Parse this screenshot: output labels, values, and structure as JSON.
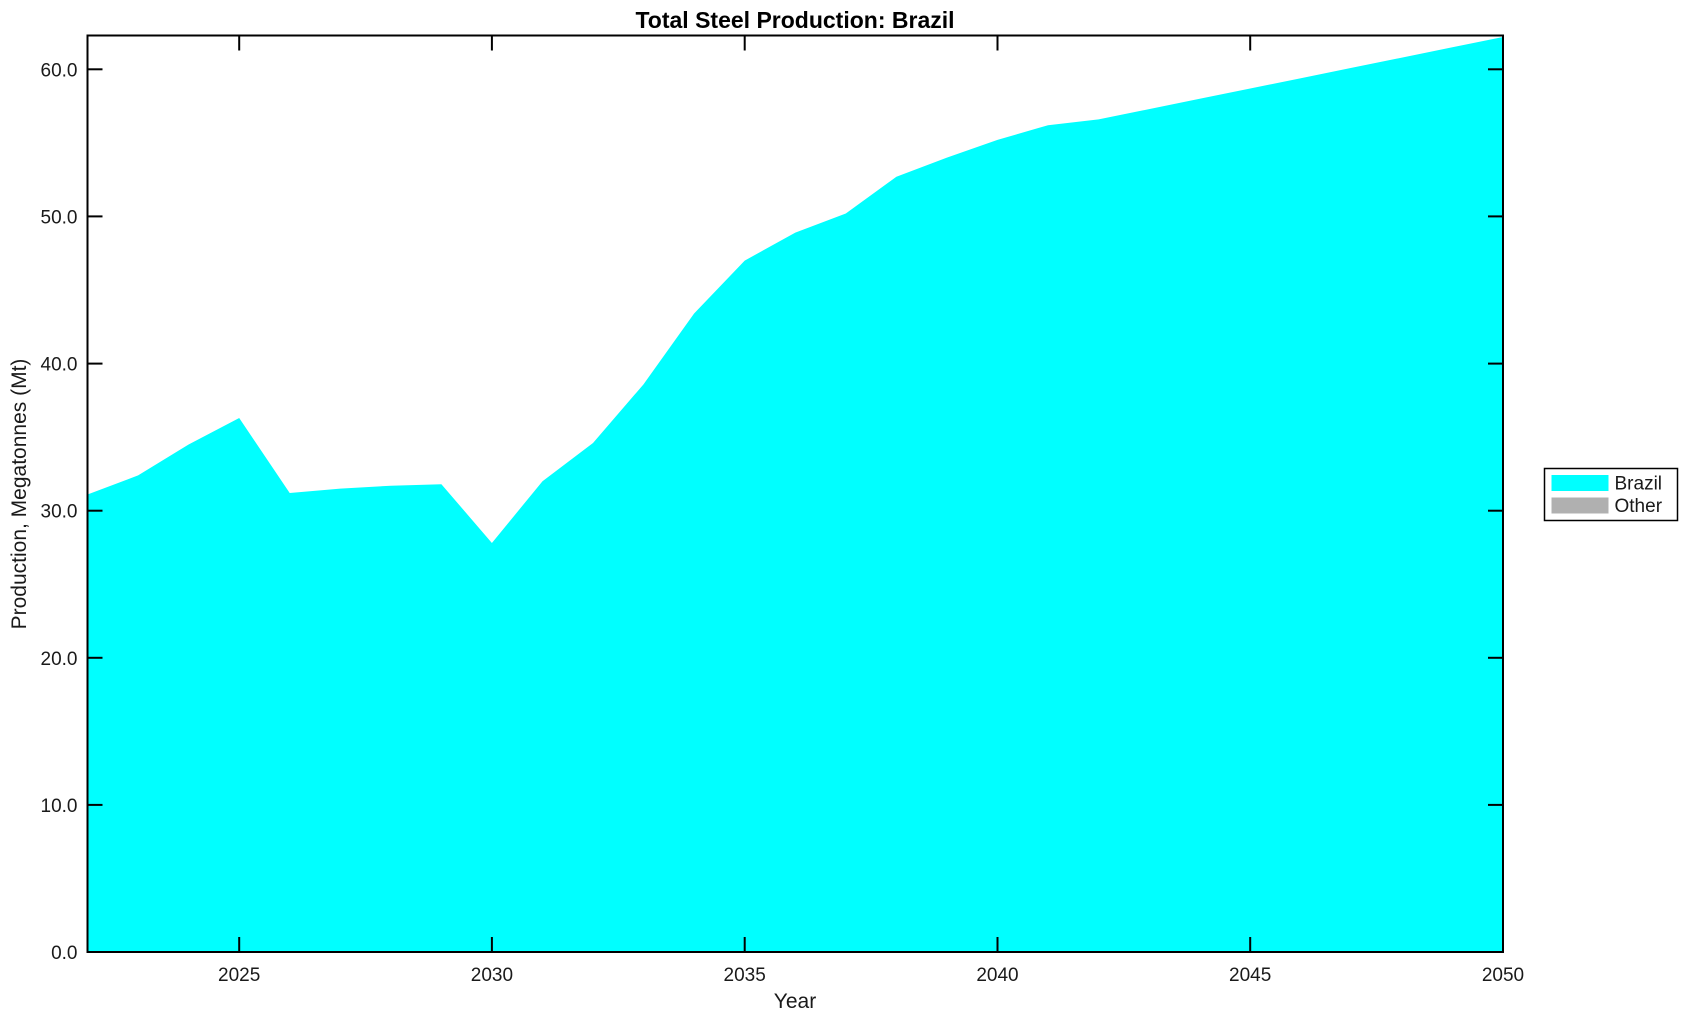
{
  "chart_data": {
    "type": "area",
    "title": "Total Steel Production: Brazil",
    "xlabel": "Year",
    "ylabel": "Production, Megatonnes (Mt)",
    "x": [
      2022,
      2023,
      2024,
      2025,
      2026,
      2027,
      2028,
      2029,
      2030,
      2031,
      2032,
      2033,
      2034,
      2035,
      2036,
      2037,
      2038,
      2039,
      2040,
      2041,
      2042,
      2043,
      2044,
      2045,
      2046,
      2047,
      2048,
      2049,
      2050
    ],
    "series": [
      {
        "name": "Brazil",
        "color": "#00FFFF",
        "values": [
          31.1,
          32.4,
          34.5,
          36.3,
          31.2,
          31.5,
          31.7,
          31.8,
          27.8,
          32.0,
          34.6,
          38.6,
          43.4,
          47.0,
          48.9,
          50.2,
          52.7,
          54.0,
          55.2,
          56.2,
          56.6,
          57.3,
          58.0,
          58.7,
          59.4,
          60.1,
          60.8,
          61.5,
          62.2
        ]
      }
    ],
    "legend": {
      "position": "outside-right",
      "entries": [
        {
          "label": "Brazil",
          "color": "#00FFFF"
        },
        {
          "label": "Other",
          "color": "#B0B0B0"
        }
      ]
    },
    "xlim": [
      2022,
      2050
    ],
    "ylim": [
      0,
      62.3
    ],
    "xticks": [
      2025,
      2030,
      2035,
      2040,
      2045,
      2050
    ],
    "yticks": [
      0,
      10,
      20,
      30,
      40,
      50,
      60
    ],
    "ytick_labels": [
      "0.0",
      "10.0",
      "20.0",
      "30.0",
      "40.0",
      "50.0",
      "60.0"
    ],
    "grid": false,
    "axis_color": "#000000",
    "text_color": "#1a1a1a",
    "background_color": "#ffffff"
  }
}
